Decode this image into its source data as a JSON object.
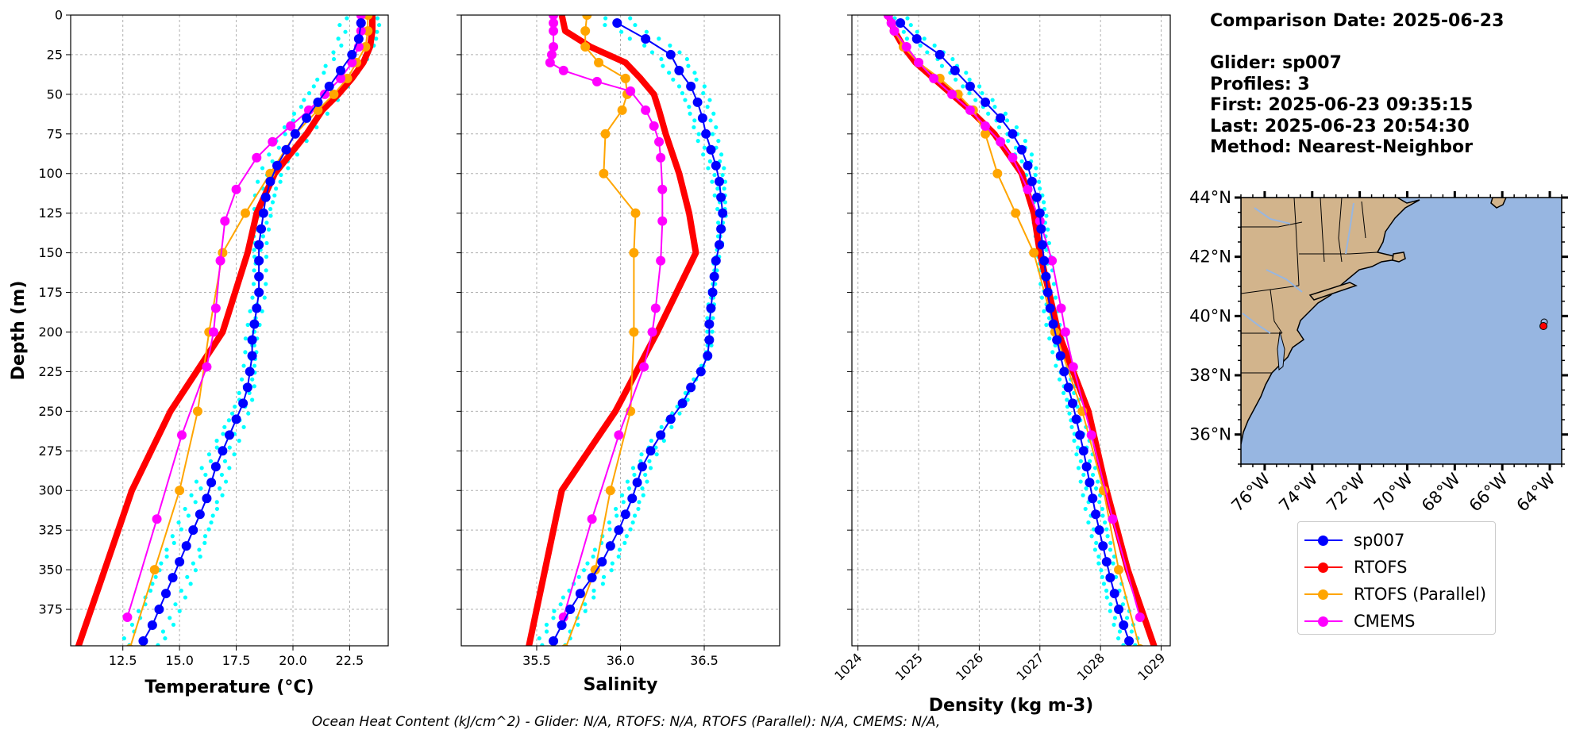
{
  "info": {
    "date_line": "Comparison Date: 2025-06-23",
    "glider_line": "Glider: sp007",
    "profiles_line": "Profiles: 3",
    "first_line": "First: 2025-06-23 09:35:15",
    "last_line": "Last: 2025-06-23 20:54:30",
    "method_line": "Method: Nearest-Neighbor"
  },
  "footer": "Ocean Heat Content (kJ/cm^2) - Glider: N/A,  RTOFS: N/A,  RTOFS (Parallel): N/A,  CMEMS: N/A,",
  "colors": {
    "glider": "#0000ff",
    "glider_raw": "#00ffff",
    "rtofs": "#ff0000",
    "rtofs_parallel": "#ffa500",
    "cmems": "#ff00ff",
    "land": "#d2b48c",
    "ocean": "#97b6e1"
  },
  "legend": [
    {
      "label": "sp007",
      "color": "#0000ff"
    },
    {
      "label": "RTOFS",
      "color": "#ff0000"
    },
    {
      "label": "RTOFS (Parallel)",
      "color": "#ffa500"
    },
    {
      "label": "CMEMS",
      "color": "#ff00ff"
    }
  ],
  "chart_data": [
    {
      "type": "line",
      "xlabel": "Temperature (°C)",
      "ylabel": "Depth (m)",
      "xlim": [
        10.2,
        24.2
      ],
      "ylim": [
        398,
        0
      ],
      "xticks": [
        12.5,
        15.0,
        17.5,
        20.0,
        22.5
      ],
      "yticks": [
        0,
        25,
        50,
        75,
        100,
        125,
        150,
        175,
        200,
        225,
        250,
        275,
        300,
        325,
        350,
        375
      ],
      "grid": true,
      "series": [
        {
          "name": "sp007",
          "depth": [
            5,
            15,
            25,
            35,
            45,
            55,
            65,
            75,
            85,
            95,
            105,
            115,
            125,
            135,
            145,
            155,
            165,
            175,
            185,
            195,
            205,
            215,
            225,
            235,
            245,
            255,
            265,
            275,
            285,
            295,
            305,
            315,
            325,
            335,
            345,
            355,
            365,
            375,
            385,
            395
          ],
          "values": [
            23.0,
            22.9,
            22.6,
            22.1,
            21.6,
            21.1,
            20.6,
            20.1,
            19.7,
            19.3,
            19.0,
            18.8,
            18.7,
            18.6,
            18.5,
            18.5,
            18.5,
            18.5,
            18.4,
            18.3,
            18.2,
            18.2,
            18.1,
            18.0,
            17.8,
            17.5,
            17.2,
            16.9,
            16.6,
            16.4,
            16.2,
            15.9,
            15.6,
            15.3,
            15.0,
            14.7,
            14.4,
            14.1,
            13.8,
            13.4
          ]
        },
        {
          "name": "RTOFS",
          "depth": [
            0,
            10,
            20,
            30,
            40,
            50,
            60,
            75,
            100,
            125,
            150,
            200,
            250,
            300,
            350,
            400
          ],
          "values": [
            23.5,
            23.5,
            23.4,
            23.1,
            22.6,
            22.0,
            21.3,
            20.6,
            19.2,
            18.4,
            18.0,
            16.9,
            14.6,
            12.9,
            11.7,
            10.5
          ]
        },
        {
          "name": "RTOFS (Parallel)",
          "depth": [
            0,
            10,
            20,
            30,
            40,
            50,
            60,
            75,
            100,
            125,
            150,
            200,
            250,
            300,
            350,
            400
          ],
          "values": [
            23.3,
            23.3,
            23.2,
            22.8,
            22.4,
            21.8,
            21.1,
            20.1,
            19.0,
            17.9,
            16.9,
            16.3,
            15.8,
            15.0,
            13.9,
            12.8
          ]
        },
        {
          "name": "CMEMS",
          "depth": [
            0,
            5,
            10,
            20,
            30,
            40,
            50,
            60,
            70,
            80,
            90,
            110,
            130,
            155,
            185,
            200,
            222,
            265,
            318,
            380
          ],
          "values": [
            23.0,
            23.0,
            23.0,
            22.9,
            22.6,
            22.1,
            21.4,
            20.7,
            19.9,
            19.1,
            18.4,
            17.5,
            17.0,
            16.8,
            16.6,
            16.5,
            16.2,
            15.1,
            14.0,
            12.7
          ]
        }
      ]
    },
    {
      "type": "line",
      "xlabel": "Salinity",
      "xlim": [
        35.05,
        36.95
      ],
      "ylim": [
        398,
        0
      ],
      "xticks": [
        35.5,
        36.0,
        36.5
      ],
      "grid": true,
      "series": [
        {
          "name": "sp007",
          "depth": [
            5,
            15,
            25,
            35,
            45,
            55,
            65,
            75,
            85,
            95,
            105,
            115,
            125,
            135,
            145,
            155,
            165,
            175,
            185,
            195,
            205,
            215,
            225,
            235,
            245,
            255,
            265,
            275,
            285,
            295,
            305,
            315,
            325,
            335,
            345,
            355,
            365,
            375,
            385,
            395
          ],
          "values": [
            35.98,
            36.15,
            36.3,
            36.35,
            36.42,
            36.46,
            36.49,
            36.51,
            36.54,
            36.57,
            36.59,
            36.6,
            36.61,
            36.6,
            36.59,
            36.57,
            36.56,
            36.55,
            36.54,
            36.53,
            36.53,
            36.52,
            36.48,
            36.42,
            36.37,
            36.3,
            36.24,
            36.18,
            36.13,
            36.1,
            36.07,
            36.03,
            35.99,
            35.94,
            35.89,
            35.83,
            35.76,
            35.7,
            35.65,
            35.6
          ]
        },
        {
          "name": "RTOFS",
          "depth": [
            0,
            10,
            20,
            30,
            40,
            50,
            60,
            75,
            100,
            125,
            150,
            200,
            250,
            300,
            350,
            400
          ],
          "values": [
            35.65,
            35.67,
            35.82,
            36.03,
            36.12,
            36.2,
            36.23,
            36.27,
            36.35,
            36.41,
            36.45,
            36.22,
            35.97,
            35.65,
            35.55,
            35.45
          ]
        },
        {
          "name": "RTOFS (Parallel)",
          "depth": [
            0,
            10,
            20,
            30,
            40,
            50,
            60,
            75,
            100,
            125,
            150,
            200,
            250,
            300,
            350,
            400
          ],
          "values": [
            35.8,
            35.79,
            35.79,
            35.87,
            36.03,
            36.04,
            36.01,
            35.91,
            35.9,
            36.09,
            36.08,
            36.08,
            36.06,
            35.94,
            35.85,
            35.67
          ]
        },
        {
          "name": "CMEMS",
          "depth": [
            0,
            5,
            10,
            20,
            25,
            30,
            35,
            42,
            48,
            60,
            70,
            80,
            90,
            110,
            130,
            155,
            185,
            200,
            222,
            265,
            318,
            380
          ],
          "values": [
            35.6,
            35.6,
            35.6,
            35.6,
            35.59,
            35.58,
            35.66,
            35.86,
            36.06,
            36.15,
            36.2,
            36.23,
            36.24,
            36.25,
            36.25,
            36.24,
            36.21,
            36.19,
            36.14,
            35.99,
            35.83,
            35.66
          ]
        }
      ]
    },
    {
      "type": "line",
      "xlabel": "Density (kg m-3)",
      "xlim": [
        1023.9,
        1029.15
      ],
      "ylim": [
        398,
        0
      ],
      "xticks": [
        1024,
        1025,
        1026,
        1027,
        1028,
        1029
      ],
      "grid": true,
      "series": [
        {
          "name": "sp007",
          "depth": [
            5,
            15,
            25,
            35,
            45,
            55,
            65,
            75,
            85,
            95,
            105,
            115,
            125,
            135,
            145,
            155,
            165,
            175,
            185,
            195,
            205,
            215,
            225,
            235,
            245,
            255,
            265,
            275,
            285,
            295,
            305,
            315,
            325,
            335,
            345,
            355,
            365,
            375,
            385,
            395
          ],
          "values": [
            1024.7,
            1024.97,
            1025.35,
            1025.6,
            1025.85,
            1026.1,
            1026.35,
            1026.55,
            1026.7,
            1026.8,
            1026.87,
            1026.95,
            1027.0,
            1027.02,
            1027.04,
            1027.07,
            1027.1,
            1027.13,
            1027.17,
            1027.22,
            1027.28,
            1027.34,
            1027.4,
            1027.47,
            1027.54,
            1027.6,
            1027.66,
            1027.72,
            1027.77,
            1027.82,
            1027.87,
            1027.92,
            1027.98,
            1028.04,
            1028.1,
            1028.16,
            1028.23,
            1028.3,
            1028.38,
            1028.47
          ]
        },
        {
          "name": "RTOFS",
          "depth": [
            0,
            10,
            20,
            30,
            40,
            50,
            60,
            75,
            100,
            125,
            150,
            200,
            250,
            300,
            350,
            400
          ],
          "values": [
            1024.5,
            1024.6,
            1024.75,
            1024.95,
            1025.25,
            1025.55,
            1025.85,
            1026.25,
            1026.7,
            1026.9,
            1027.0,
            1027.3,
            1027.8,
            1028.1,
            1028.45,
            1028.9
          ]
        },
        {
          "name": "RTOFS (Parallel)",
          "depth": [
            0,
            10,
            20,
            30,
            40,
            50,
            60,
            75,
            100,
            125,
            150,
            200,
            250,
            300,
            350,
            400
          ],
          "values": [
            1024.5,
            1024.6,
            1024.75,
            1025.0,
            1025.35,
            1025.65,
            1025.9,
            1026.1,
            1026.3,
            1026.6,
            1026.9,
            1027.25,
            1027.7,
            1028.05,
            1028.3,
            1028.65
          ]
        },
        {
          "name": "CMEMS",
          "depth": [
            0,
            5,
            10,
            20,
            30,
            40,
            50,
            60,
            70,
            80,
            90,
            110,
            130,
            155,
            185,
            200,
            222,
            265,
            318,
            380
          ],
          "values": [
            1024.5,
            1024.55,
            1024.6,
            1024.8,
            1025.0,
            1025.25,
            1025.55,
            1025.85,
            1026.1,
            1026.35,
            1026.55,
            1026.8,
            1027.0,
            1027.2,
            1027.35,
            1027.42,
            1027.55,
            1027.85,
            1028.2,
            1028.65
          ]
        }
      ]
    },
    {
      "type": "map",
      "lon_ticks": [
        "76°W",
        "74°W",
        "72°W",
        "70°W",
        "68°W",
        "66°W",
        "64°W"
      ],
      "lat_ticks": [
        "44°N",
        "42°N",
        "40°N",
        "38°N",
        "36°N"
      ],
      "extent": {
        "lon": [
          -77,
          -63.5
        ],
        "lat": [
          35,
          44
        ]
      },
      "markers": [
        {
          "lon": -64.2,
          "lat": 39.85
        }
      ]
    }
  ]
}
